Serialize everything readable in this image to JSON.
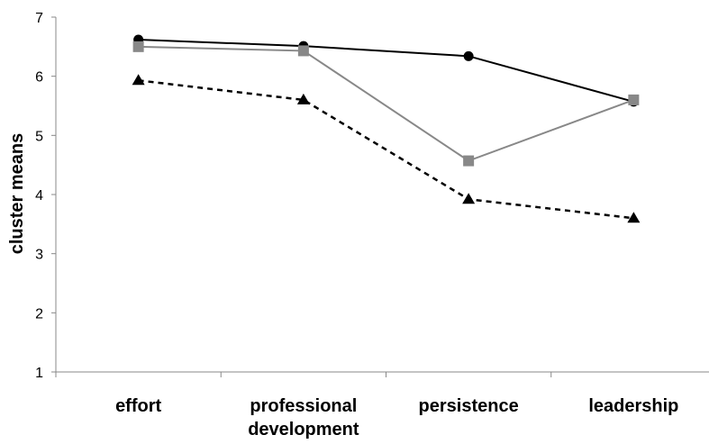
{
  "chart_data": {
    "type": "line",
    "title": "",
    "xlabel": "",
    "ylabel": "cluster means",
    "ylim": [
      1,
      7
    ],
    "yticks": [
      1,
      2,
      3,
      4,
      5,
      6,
      7
    ],
    "categories": [
      [
        "effort"
      ],
      [
        "professional",
        "development"
      ],
      [
        "persistence"
      ],
      [
        "leadership"
      ]
    ],
    "grid": false,
    "legend": "none",
    "series": [
      {
        "values": [
          6.62,
          6.51,
          6.34,
          5.57
        ],
        "marker": "circle",
        "color": "#000000",
        "line_style": "solid"
      },
      {
        "values": [
          6.5,
          6.43,
          4.57,
          5.6
        ],
        "marker": "square",
        "color": "#888888",
        "line_style": "solid"
      },
      {
        "values": [
          5.93,
          5.6,
          3.92,
          3.6
        ],
        "marker": "triangle",
        "color": "#000000",
        "line_style": "dashed"
      }
    ]
  }
}
